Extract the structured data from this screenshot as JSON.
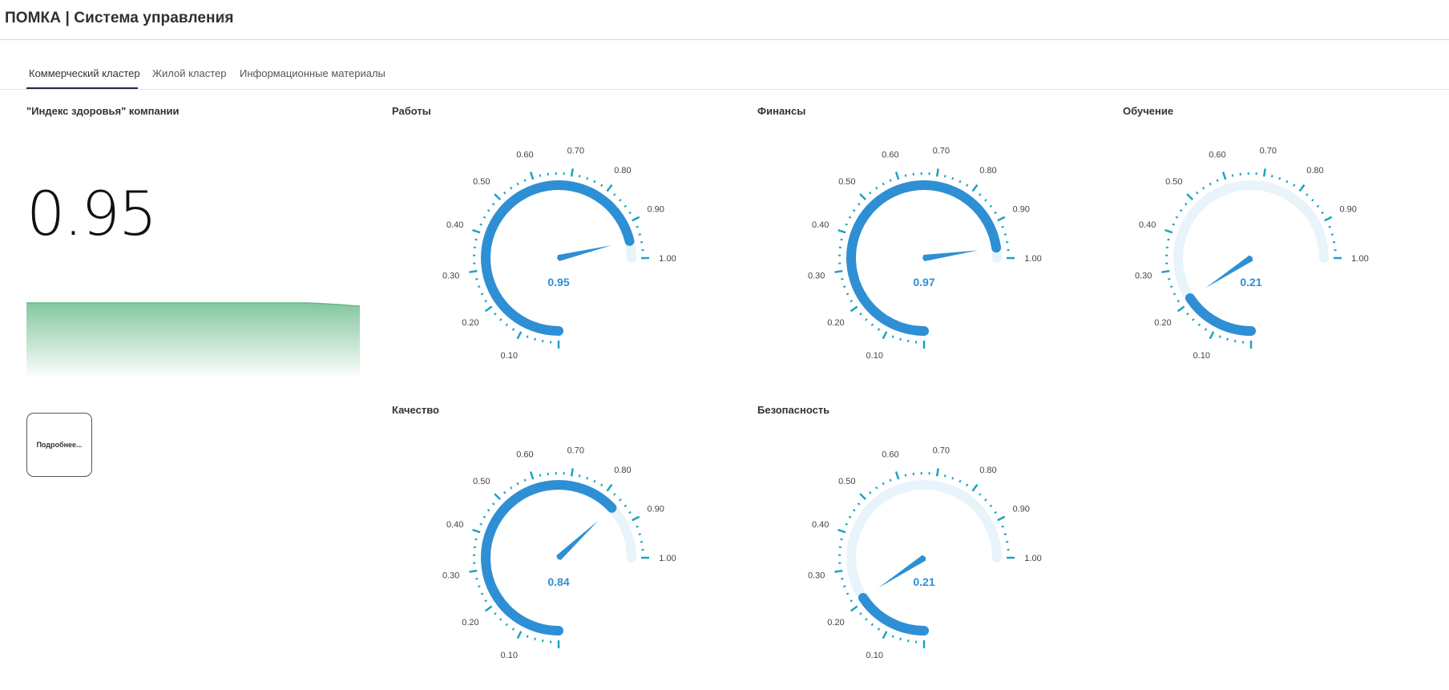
{
  "header": {
    "title": "ПОМКА | Система управления",
    "star_icon": "star-outline-icon"
  },
  "tabs": [
    {
      "label": "Коммерческий кластер",
      "active": true
    },
    {
      "label": "Жилой кластер",
      "active": false
    },
    {
      "label": "Информационные материалы",
      "active": false
    }
  ],
  "health": {
    "title": "\"Индекс здоровья\" компании",
    "value": "0.95",
    "sparkline_color": "#7cc49a",
    "more_button": "Подробнее..."
  },
  "gauges": [
    {
      "id": "works",
      "title": "Работы",
      "value": 0.95,
      "label": "0.95"
    },
    {
      "id": "finance",
      "title": "Финансы",
      "value": 0.97,
      "label": "0.97"
    },
    {
      "id": "training",
      "title": "Обучение",
      "value": 0.21,
      "label": "0.21"
    },
    {
      "id": "quality",
      "title": "Качество",
      "value": 0.84,
      "label": "0.84"
    },
    {
      "id": "safety",
      "title": "Безопасность",
      "value": 0.21,
      "label": "0.21"
    }
  ],
  "gauge_scale": {
    "min": 0.0,
    "max": 1.0,
    "tick_labels": [
      "0.10",
      "0.20",
      "0.30",
      "0.40",
      "0.50",
      "0.60",
      "0.70",
      "0.80",
      "0.90",
      "1.00"
    ]
  },
  "colors": {
    "gauge_fill": "#2e8fd4",
    "gauge_track": "#e8f4fa",
    "gauge_ticks": "#1ca3c2",
    "value_text": "#2e8fd4",
    "tab_active_underline": "#1f2a44"
  }
}
